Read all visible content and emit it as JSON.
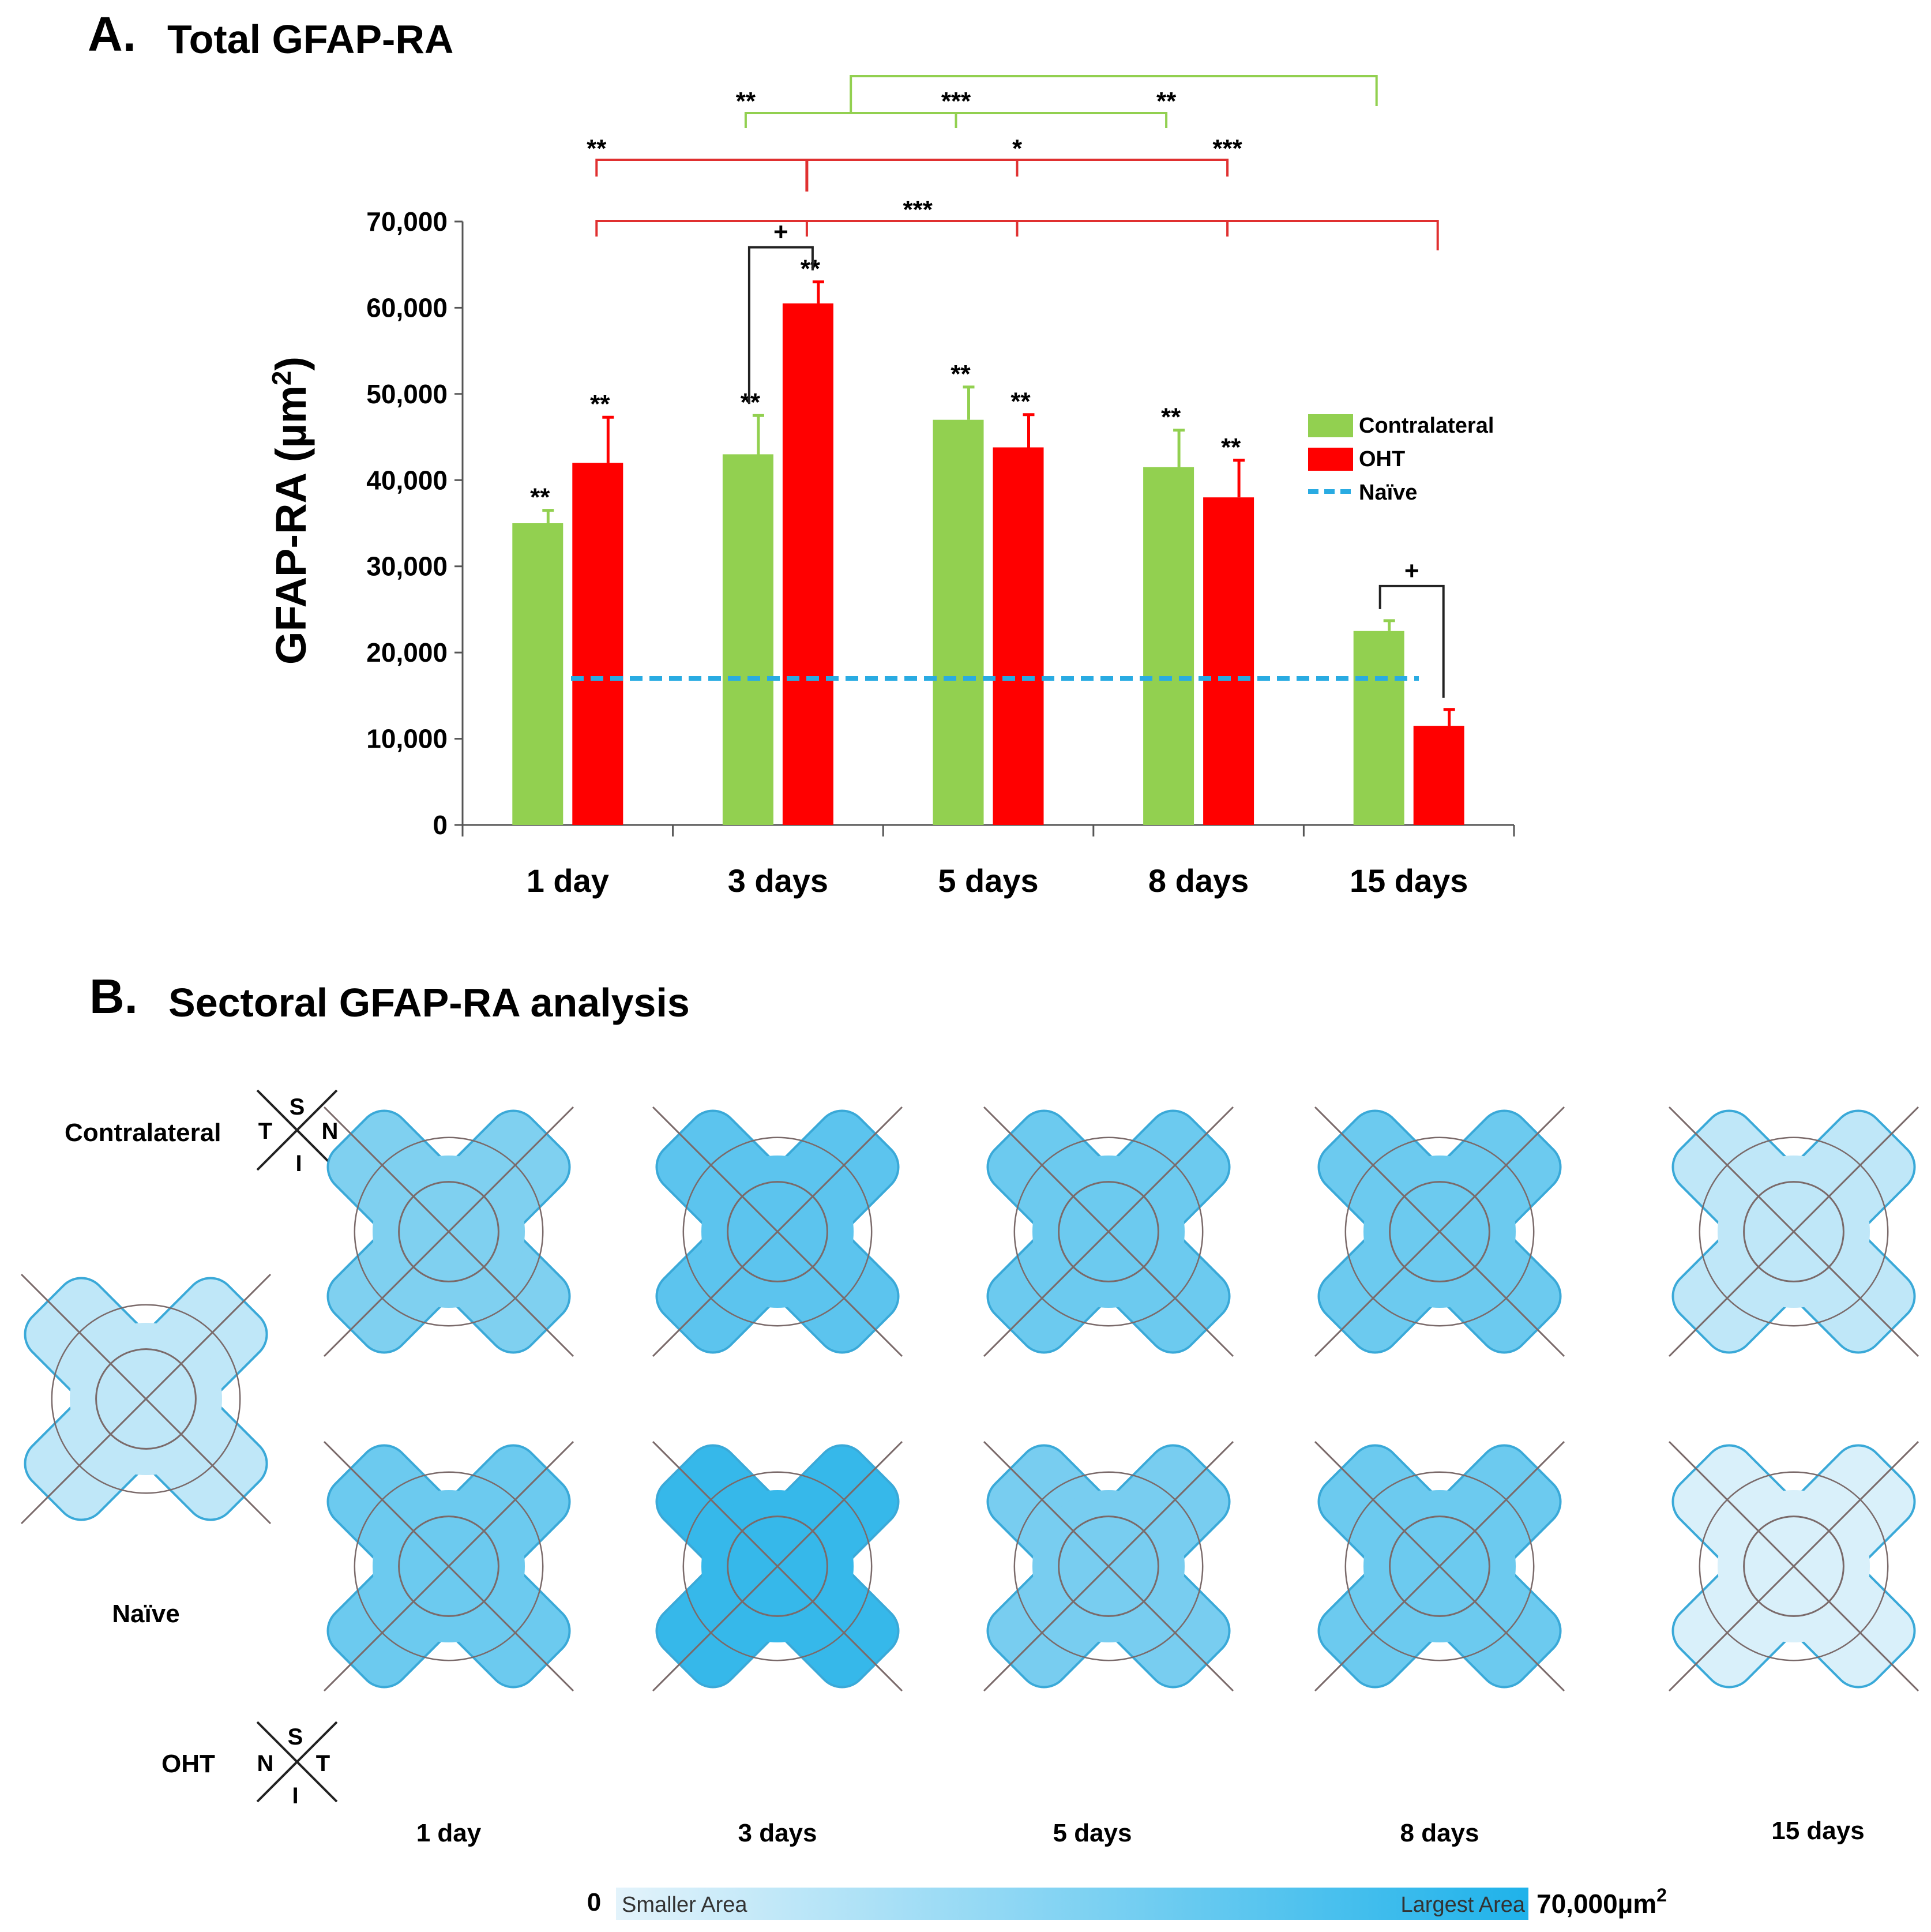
{
  "panel_a": {
    "letter": "A.",
    "title": "Total GFAP-RA"
  },
  "panel_b": {
    "letter": "B.",
    "title": "Sectoral GFAP-RA analysis"
  },
  "colors": {
    "contralateral": "#92d050",
    "oht": "#ff0000",
    "naive": "#29abe2",
    "bracket_green": "#92d050",
    "bracket_red": "#e03030",
    "scale_light": "#e3f3fb",
    "scale_dark": "#1fb2ea",
    "sector_stroke": "#7a6a6a",
    "outline": "#3aa9d8"
  },
  "chart_data": {
    "type": "bar",
    "title": "Total GFAP-RA",
    "xlabel": "",
    "ylabel": "GFAP-RA (µm²)",
    "ylabel_main": "GFAP-RA (µm",
    "ylabel_sup": "2",
    "ylabel_close": ")",
    "ylim": [
      0,
      70000
    ],
    "yticks": [
      0,
      10000,
      20000,
      30000,
      40000,
      50000,
      60000,
      70000
    ],
    "ytick_labels": [
      "0",
      "10,000",
      "20,000",
      "30,000",
      "40,000",
      "50,000",
      "60,000",
      "70,000"
    ],
    "categories": [
      "1 day",
      "3 days",
      "5 days",
      "8 days",
      "15 days"
    ],
    "series": [
      {
        "name": "Contralateral",
        "values": [
          35000,
          43000,
          47000,
          41500,
          22500
        ],
        "errors": [
          1500,
          4500,
          3800,
          4300,
          1200
        ],
        "labels": [
          "**",
          "**",
          "**",
          "**",
          ""
        ]
      },
      {
        "name": "OHT",
        "values": [
          42000,
          60500,
          43800,
          38000,
          11500
        ],
        "errors": [
          5300,
          2500,
          3800,
          4300,
          1900
        ],
        "labels": [
          "**",
          "**",
          "**",
          "**",
          ""
        ]
      }
    ],
    "reference_line": {
      "name": "Naïve",
      "value": 17000
    },
    "legend": {
      "position": "right",
      "entries": [
        "Contralateral",
        "OHT",
        "Naïve"
      ]
    },
    "pair_annotations": [
      {
        "category": "3 days",
        "label": "+"
      },
      {
        "category": "15 days",
        "label": "+"
      }
    ],
    "green_brackets": {
      "labels": [
        "**",
        "***",
        "**"
      ]
    },
    "red_brackets": {
      "row1_labels": [
        "**",
        "*",
        "***"
      ],
      "row2_label": "***"
    }
  },
  "retina_maps": {
    "contralateral_label": "Contralateral",
    "oht_label": "OHT",
    "naive_label": "Naïve",
    "compass_contralateral": {
      "s": "S",
      "n": "N",
      "t": "T",
      "i": "I"
    },
    "compass_oht": {
      "s": "S",
      "n": "N",
      "t": "T",
      "i": "I"
    },
    "day_labels": [
      "1 day",
      "3 days",
      "5 days",
      "8 days",
      "15 days"
    ],
    "scale": {
      "min_label": "0",
      "smaller": "Smaller Area",
      "largest": "Largest Area",
      "max_label": "70,000µm",
      "max_sup": "2"
    }
  }
}
